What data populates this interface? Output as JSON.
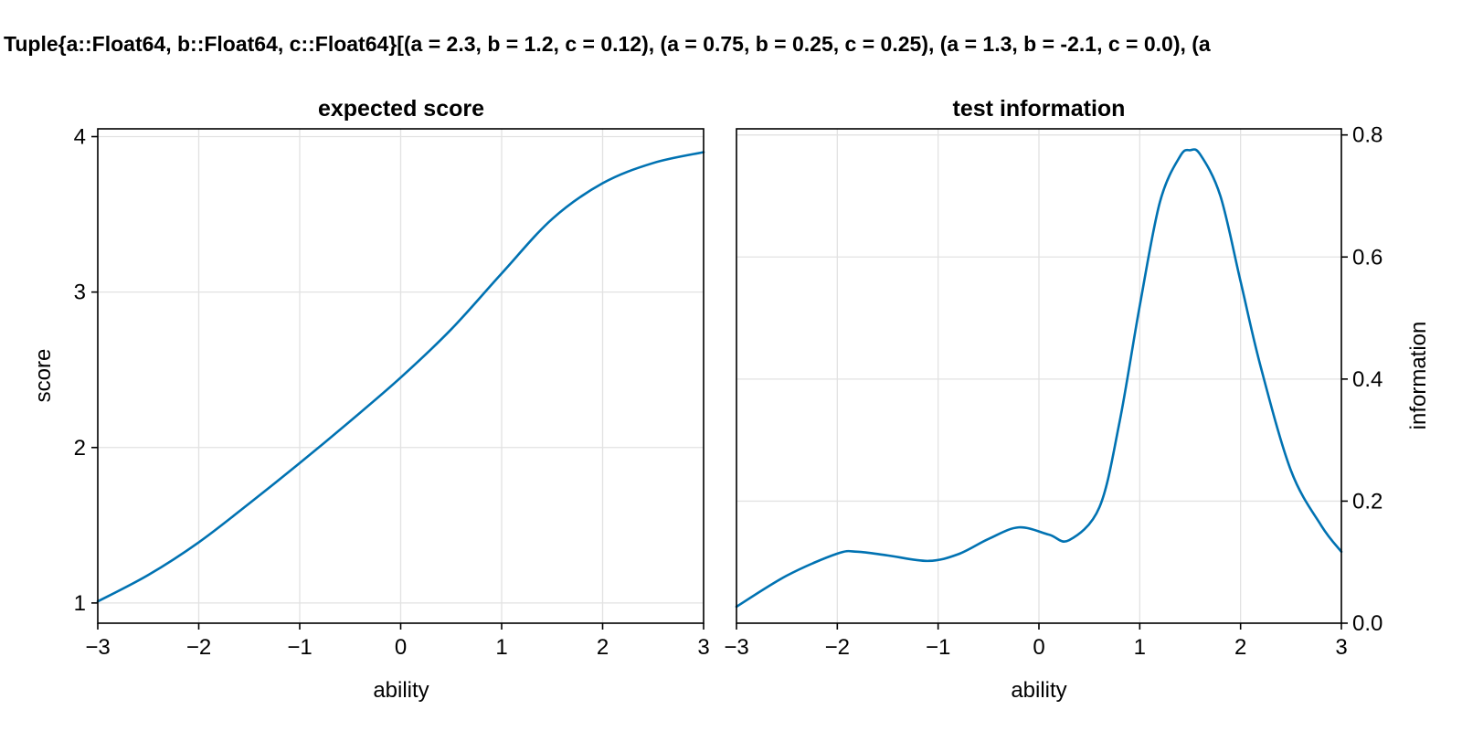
{
  "figure": {
    "suptitle": "Tuple{a::Float64, b::Float64, c::Float64}[(a = 2.3, b = 1.2, c = 0.12), (a = 0.75, b = 0.25, c = 0.25), (a = 1.3, b = -2.1, c = 0.0), (a"
  },
  "colors": {
    "series": "#0072b2",
    "grid": "#e2e2e2",
    "axis": "#000000"
  },
  "chart_data": [
    {
      "type": "line",
      "title": "expected score",
      "xlabel": "ability",
      "ylabel": "score",
      "xlim": [
        -3,
        3
      ],
      "ylim": [
        0.87,
        4.05
      ],
      "xticks": [
        -3,
        -2,
        -1,
        0,
        1,
        2,
        3
      ],
      "xtick_labels": [
        "−3",
        "−2",
        "−1",
        "0",
        "1",
        "2",
        "3"
      ],
      "yticks": [
        1,
        2,
        3,
        4
      ],
      "ytick_labels": [
        "1",
        "2",
        "3",
        "4"
      ],
      "yaxis_side": "left",
      "grid": true,
      "series": [
        {
          "x": [
            -3.0,
            -2.5,
            -2.0,
            -1.5,
            -1.0,
            -0.5,
            0.0,
            0.5,
            1.0,
            1.5,
            2.0,
            2.5,
            3.0
          ],
          "y": [
            1.01,
            1.18,
            1.39,
            1.64,
            1.9,
            2.17,
            2.45,
            2.76,
            3.12,
            3.47,
            3.7,
            3.83,
            3.9
          ]
        }
      ]
    },
    {
      "type": "line",
      "title": "test information",
      "xlabel": "ability",
      "ylabel": "information",
      "xlim": [
        -3,
        3
      ],
      "ylim": [
        0.0,
        0.81
      ],
      "xticks": [
        -3,
        -2,
        -1,
        0,
        1,
        2,
        3
      ],
      "xtick_labels": [
        "−3",
        "−2",
        "−1",
        "0",
        "1",
        "2",
        "3"
      ],
      "yticks": [
        0.0,
        0.2,
        0.4,
        0.6,
        0.8
      ],
      "ytick_labels": [
        "0.0",
        "0.2",
        "0.4",
        "0.6",
        "0.8"
      ],
      "yaxis_side": "right",
      "grid": true,
      "series": [
        {
          "x": [
            -3.0,
            -2.5,
            -2.0,
            -1.8,
            -1.5,
            -1.1,
            -0.8,
            -0.5,
            -0.2,
            0.1,
            0.3,
            0.6,
            0.8,
            1.0,
            1.2,
            1.4,
            1.5,
            1.6,
            1.8,
            2.0,
            2.2,
            2.5,
            2.8,
            3.0
          ],
          "y": [
            0.027,
            0.078,
            0.114,
            0.117,
            0.111,
            0.102,
            0.113,
            0.138,
            0.157,
            0.145,
            0.136,
            0.19,
            0.33,
            0.52,
            0.69,
            0.765,
            0.775,
            0.768,
            0.7,
            0.56,
            0.42,
            0.25,
            0.16,
            0.117
          ]
        }
      ]
    }
  ]
}
